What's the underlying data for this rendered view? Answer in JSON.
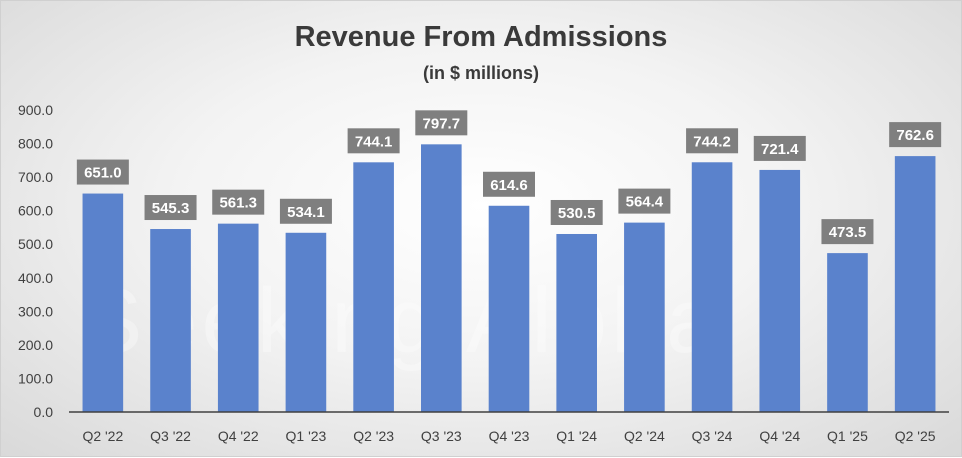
{
  "chart_data": {
    "type": "bar",
    "title": "Revenue From Admissions",
    "subtitle": "(in $ millions)",
    "categories": [
      "Q2 '22",
      "Q3 '22",
      "Q4 '22",
      "Q1 '23",
      "Q2 '23",
      "Q3 '23",
      "Q4 '23",
      "Q1 '24",
      "Q2 '24",
      "Q3 '24",
      "Q4 '24",
      "Q1 '25",
      "Q2 '25"
    ],
    "values": [
      651.0,
      545.3,
      561.3,
      534.1,
      744.1,
      797.7,
      614.6,
      530.5,
      564.4,
      744.2,
      721.4,
      473.5,
      762.6
    ],
    "data_labels": [
      "651.0",
      "545.3",
      "561.3",
      "534.1",
      "744.1",
      "797.7",
      "614.6",
      "530.5",
      "564.4",
      "744.2",
      "721.4",
      "473.5",
      "762.6"
    ],
    "yticks": [
      "0.0",
      "100.0",
      "200.0",
      "300.0",
      "400.0",
      "500.0",
      "600.0",
      "700.0",
      "800.0",
      "900.0"
    ],
    "ylim": [
      0,
      900
    ],
    "grid": false,
    "legend": "none",
    "bar_color": "#5a82cc",
    "label_bg_color": "#7f7f7f",
    "label_text_color": "#ffffff"
  },
  "watermark": "Seeking Alpha"
}
